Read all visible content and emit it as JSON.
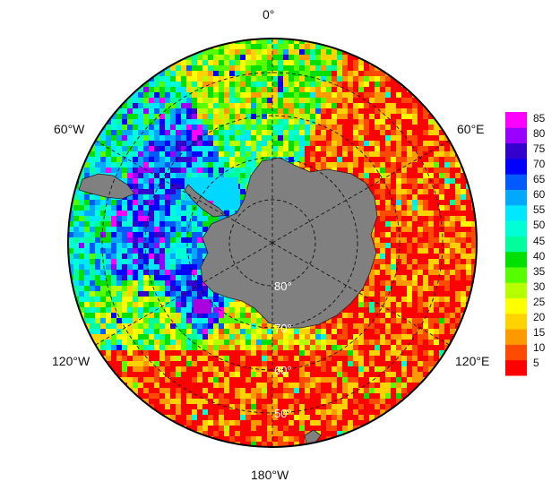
{
  "map": {
    "projection": "south-polar-stereographic",
    "longitude_labels": {
      "top": "0°",
      "upper_left": "60°W",
      "upper_right": "60°E",
      "lower_left": "120°W",
      "lower_right": "120°E",
      "bottom": "180°W"
    },
    "latitude_labels": [
      "80°",
      "70°",
      "60°",
      "50°"
    ],
    "land_color": "#808080",
    "grid_style": "dashed"
  },
  "colorbar": {
    "ticks": [
      "85",
      "80",
      "75",
      "70",
      "65",
      "60",
      "55",
      "50",
      "45",
      "40",
      "35",
      "30",
      "25",
      "20",
      "15",
      "10",
      "5"
    ],
    "min": 1,
    "max": 87,
    "colors": [
      "#ff0000",
      "#ff4a00",
      "#ff9900",
      "#ffd200",
      "#ffff00",
      "#b6ff00",
      "#55ff00",
      "#00e000",
      "#00ff9c",
      "#00ffd4",
      "#00e8ff",
      "#00a8ff",
      "#005aff",
      "#0000ff",
      "#3300cc",
      "#9900ff",
      "#ff00ff"
    ]
  }
}
